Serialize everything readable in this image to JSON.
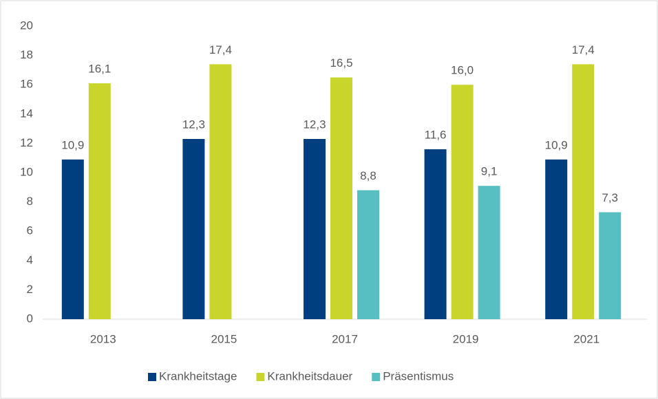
{
  "chart_data": {
    "type": "bar",
    "categories": [
      "2013",
      "2015",
      "2017",
      "2019",
      "2021"
    ],
    "series": [
      {
        "name": "Krankheitstage",
        "color": "#003f7f",
        "values": [
          10.9,
          12.3,
          12.3,
          11.6,
          10.9
        ],
        "value_labels": [
          "10,9",
          "12,3",
          "12,3",
          "11,6",
          "10,9"
        ]
      },
      {
        "name": "Krankheitsdauer",
        "color": "#c9d52b",
        "values": [
          16.1,
          17.4,
          16.5,
          16.0,
          17.4
        ],
        "value_labels": [
          "16,1",
          "17,4",
          "16,5",
          "16,0",
          "17,4"
        ]
      },
      {
        "name": "Präsentismus",
        "color": "#57bfc1",
        "values": [
          null,
          null,
          8.8,
          9.1,
          7.3
        ],
        "value_labels": [
          null,
          null,
          "8,8",
          "9,1",
          "7,3"
        ]
      }
    ],
    "ylim": [
      0,
      20
    ],
    "yticks": [
      0,
      2,
      4,
      6,
      8,
      10,
      12,
      14,
      16,
      18,
      20
    ],
    "grid": false,
    "legend": "bottom"
  }
}
